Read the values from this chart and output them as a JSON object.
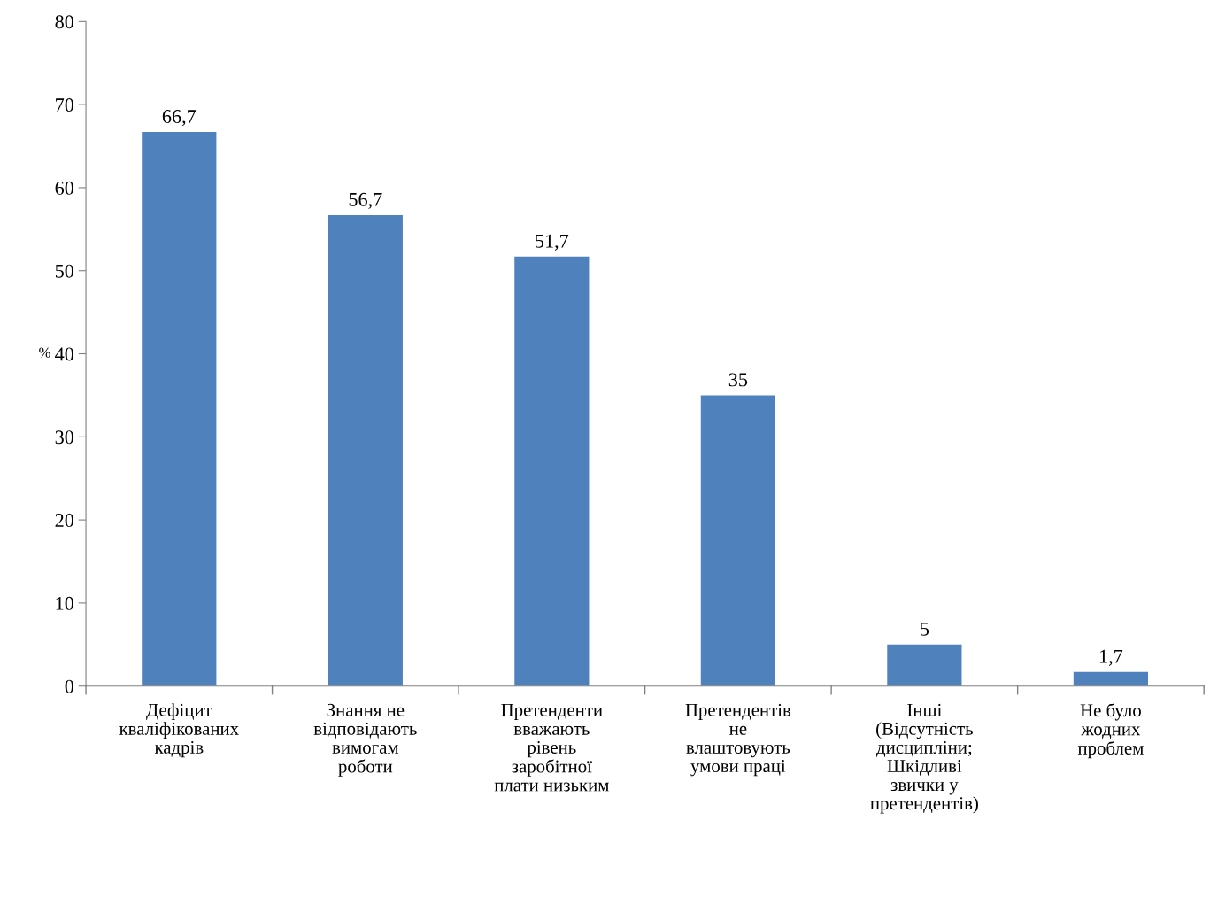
{
  "chart_data": {
    "type": "bar",
    "categories": [
      "Дефіцит\nкваліфікованих\nкадрів",
      "Знання не\nвідповідають\nвимогам\nроботи",
      "Претенденти\nвважають\nрівень\nзаробітної\nплати низьким",
      "Претендентів\nне\nвлаштовують\nумови праці",
      "Інші\n(Відсутність\nдисципліни;\nШкідливі\nзвички у\nпретендентів)",
      "Не було\nжодних\nпроблем"
    ],
    "values": [
      66.7,
      56.7,
      51.7,
      35,
      5,
      1.7
    ],
    "value_labels": [
      "66,7",
      "56,7",
      "51,7",
      "35",
      "5",
      "1,7"
    ],
    "color": "#4f81bd",
    "ylabel": "%",
    "ylim": [
      0,
      80
    ],
    "yticks": [
      0,
      10,
      20,
      30,
      40,
      50,
      60,
      70,
      80
    ],
    "grid": false,
    "legend": false
  }
}
